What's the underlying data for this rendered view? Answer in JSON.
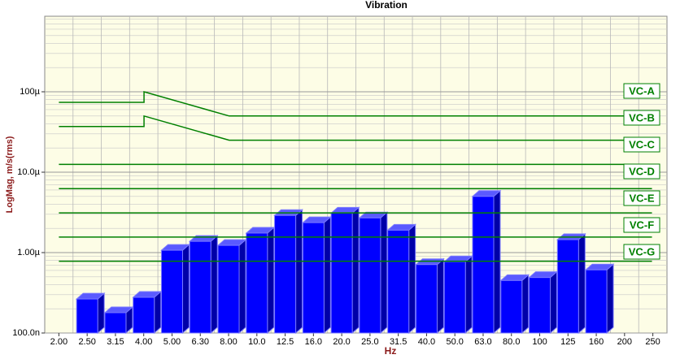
{
  "chart_data": {
    "type": "bar",
    "title": "Vibration",
    "x_label": "Hz",
    "y_label": "LogMag, m/s(rms)",
    "categories": [
      "2.00",
      "2.50",
      "3.15",
      "4.00",
      "5.00",
      "6.30",
      "8.00",
      "10.0",
      "12.5",
      "16.0",
      "20.0",
      "25.0",
      "31.5",
      "40.0",
      "50.0",
      "63.0",
      "80.0",
      "100",
      "125",
      "160",
      "200",
      "250"
    ],
    "values": [
      null,
      2.65e-07,
      1.79e-07,
      2.78e-07,
      1.07e-06,
      1.38e-06,
      1.23e-06,
      1.75e-06,
      2.9e-06,
      2.36e-06,
      3.1e-06,
      2.7e-06,
      1.9e-06,
      7.1e-07,
      7.7e-07,
      5e-06,
      4.5e-07,
      4.9e-07,
      1.45e-06,
      6.1e-07,
      null,
      null
    ],
    "color": "#0000ff",
    "log_scale": true,
    "grid": true,
    "ylim": [
      1e-07,
      0.00087
    ],
    "yticks": [
      {
        "value": 1e-07,
        "label": "100.0n"
      },
      {
        "value": 1e-06,
        "label": "1.00µ"
      },
      {
        "value": 1e-05,
        "label": "10.0µ"
      },
      {
        "value": 0.0001,
        "label": "100µ"
      }
    ],
    "criteria": [
      {
        "name": "VC-A",
        "color": "#008000",
        "x": [
          2,
          4,
          4,
          8,
          250
        ],
        "values": [
          7.4e-05,
          7.4e-05,
          0.0001,
          5e-05,
          5e-05
        ]
      },
      {
        "name": "VC-B",
        "color": "#008000",
        "x": [
          2,
          4,
          4,
          8,
          250
        ],
        "values": [
          3.7e-05,
          3.7e-05,
          5e-05,
          2.5e-05,
          2.5e-05
        ]
      },
      {
        "name": "VC-C",
        "color": "#008000",
        "x": [
          2,
          250
        ],
        "values": [
          1.25e-05,
          1.25e-05
        ]
      },
      {
        "name": "VC-D",
        "color": "#008000",
        "x": [
          2,
          250
        ],
        "values": [
          6.25e-06,
          6.25e-06
        ]
      },
      {
        "name": "VC-E",
        "color": "#008000",
        "x": [
          2,
          250
        ],
        "values": [
          3.12e-06,
          3.12e-06
        ]
      },
      {
        "name": "VC-F",
        "color": "#008000",
        "x": [
          2,
          250
        ],
        "values": [
          1.56e-06,
          1.56e-06
        ]
      },
      {
        "name": "VC-G",
        "color": "#008000",
        "x": [
          2,
          250
        ],
        "values": [
          7.8e-07,
          7.8e-07
        ]
      }
    ]
  }
}
